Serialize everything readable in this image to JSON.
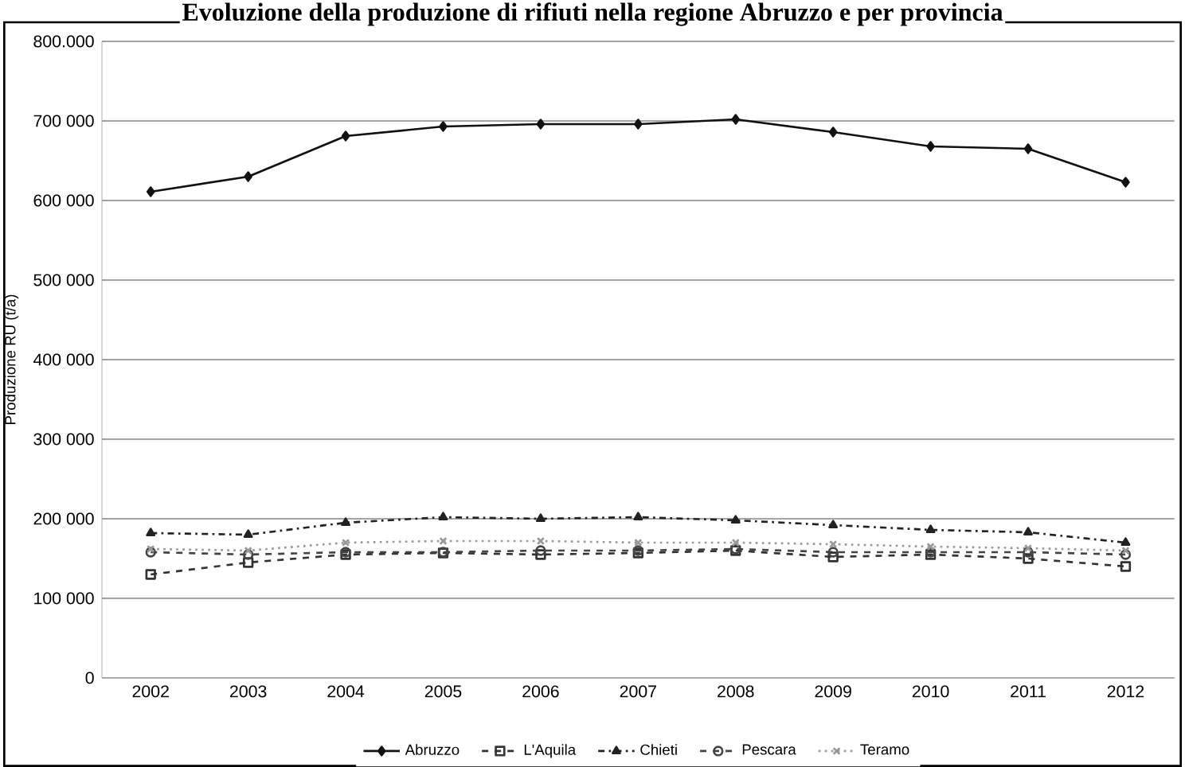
{
  "chart_data": {
    "type": "line",
    "title": "Evoluzione della produzione di rifiuti nella regione Abruzzo e per provincia",
    "ylabel": "Produzione RU (t/a)",
    "categories": [
      "2002",
      "2003",
      "2004",
      "2005",
      "2006",
      "2007",
      "2008",
      "2009",
      "2010",
      "2011",
      "2012"
    ],
    "series": [
      {
        "name": "Abruzzo",
        "color": "#111111",
        "marker": "diamond",
        "line_style": "solid",
        "values": [
          611000,
          630000,
          681000,
          693000,
          696000,
          696000,
          702000,
          686000,
          668000,
          665000,
          623000
        ]
      },
      {
        "name": "L'Aquila",
        "color": "#333333",
        "marker": "square",
        "line_style": "dashed",
        "values": [
          130000,
          145000,
          155000,
          157000,
          155000,
          157000,
          160000,
          152000,
          155000,
          150000,
          140000
        ]
      },
      {
        "name": "Chieti",
        "color": "#222222",
        "marker": "triangle",
        "line_style": "dashdotted",
        "values": [
          182000,
          180000,
          195000,
          202000,
          200000,
          202000,
          198000,
          192000,
          186000,
          183000,
          170000
        ]
      },
      {
        "name": "Pescara",
        "color": "#444444",
        "marker": "circle",
        "line_style": "dashed",
        "values": [
          158000,
          155000,
          158000,
          158000,
          160000,
          160000,
          162000,
          158000,
          158000,
          158000,
          155000
        ]
      },
      {
        "name": "Teramo",
        "color": "#999999",
        "marker": "cross",
        "line_style": "dotted",
        "values": [
          162000,
          160000,
          170000,
          172000,
          172000,
          170000,
          170000,
          168000,
          165000,
          163000,
          160000
        ]
      }
    ],
    "ylim": [
      0,
      800000
    ],
    "yticks": [
      {
        "value": 0,
        "label": "0"
      },
      {
        "value": 100000,
        "label": "100 000"
      },
      {
        "value": 200000,
        "label": "200 000"
      },
      {
        "value": 300000,
        "label": "300 000"
      },
      {
        "value": 400000,
        "label": "400 000"
      },
      {
        "value": 500000,
        "label": "500 000"
      },
      {
        "value": 600000,
        "label": "600 000"
      },
      {
        "value": 700000,
        "label": "700 000"
      },
      {
        "value": 800000,
        "label": "800.000"
      }
    ],
    "grid": "y",
    "legend": "bottom"
  }
}
